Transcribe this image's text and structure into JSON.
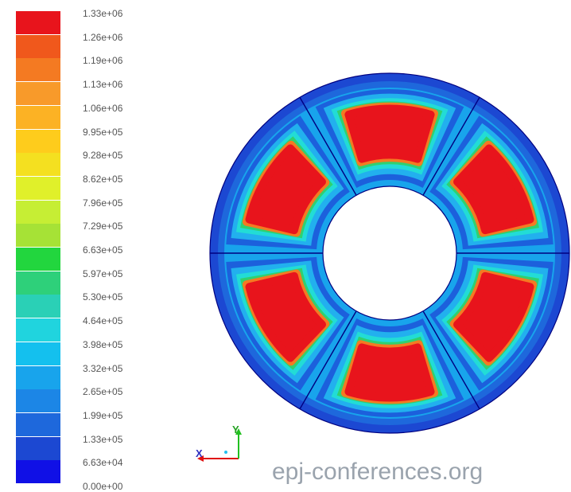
{
  "legend": {
    "ticks": [
      "1.33e+06",
      "1.26e+06",
      "1.19e+06",
      "1.13e+06",
      "1.06e+06",
      "9.95e+05",
      "9.28e+05",
      "8.62e+05",
      "7.96e+05",
      "7.29e+05",
      "6.63e+05",
      "5.97e+05",
      "5.30e+05",
      "4.64e+05",
      "3.98e+05",
      "3.32e+05",
      "2.65e+05",
      "1.99e+05",
      "1.33e+05",
      "6.63e+04",
      "0.00e+00"
    ],
    "colors": [
      "#e8141c",
      "#f0581c",
      "#f47a22",
      "#f89a2a",
      "#fcb224",
      "#fecc1c",
      "#f4e020",
      "#e0f02a",
      "#c6ee34",
      "#a6e236",
      "#22d63e",
      "#2ed07a",
      "#2ad0b6",
      "#20d4de",
      "#14c0ee",
      "#18a4ec",
      "#1c86e6",
      "#1e68dc",
      "#1c48d2",
      "#1010e6"
    ]
  },
  "contour": {
    "palette": {
      "max": "#e8141c",
      "orange": "#f47a22",
      "yellow": "#fce21a",
      "green": "#30d070",
      "cyan": "#22dcd6",
      "light_blue": "#22b0ee",
      "blue": "#1c60dc",
      "min": "#141ae0",
      "outline": "#000080"
    },
    "pole_count": 6
  },
  "triad": {
    "x_label": "X",
    "y_label": "Y"
  },
  "watermark": "epj-conferences.org"
}
